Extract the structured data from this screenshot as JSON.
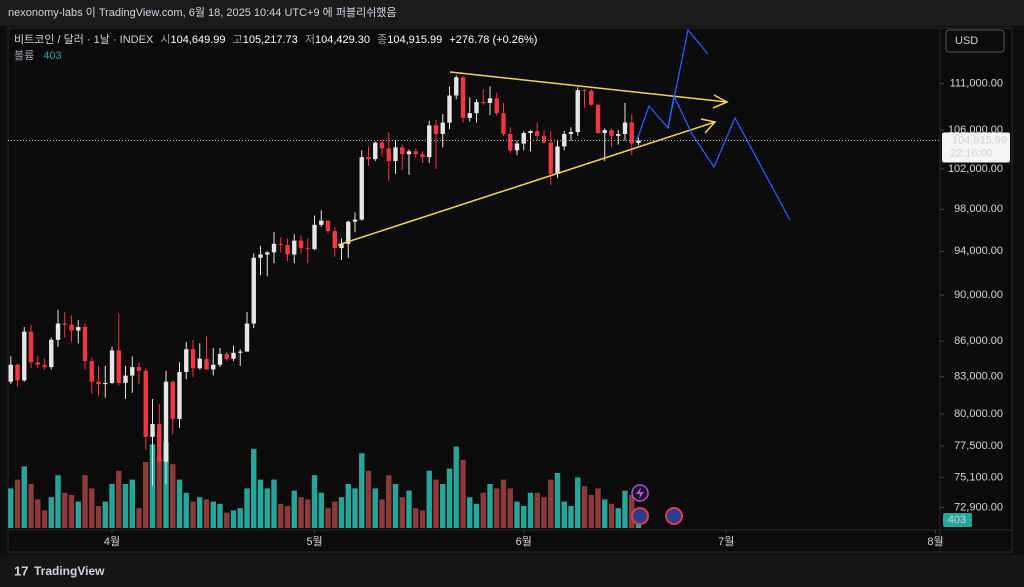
{
  "chart_data": {
    "type": "candlestick",
    "published": "nexonomy-labs 이 TradingView.com, 6월 18, 2025 10:44 UTC+9 에 퍼블리쉬했음",
    "title": "비트코인 / 달러 · 1날 · INDEX",
    "ohlc": {
      "names": [
        "시",
        "고",
        "저",
        "종"
      ],
      "value_labels": [
        "104,649.99",
        "105,217.73",
        "104,429.30",
        "104,915.99"
      ]
    },
    "change_label": "+276.78 (+0.26%)",
    "countdown": "22:16:00",
    "currency": "USD",
    "brand": "TradingView",
    "log_scale": true,
    "grid": false,
    "up_color": "#e6e6e6",
    "down_color": "#f23645",
    "open": [
      82600,
      84000,
      82700,
      86800,
      84200,
      84000,
      83800,
      86100,
      87500,
      87400,
      86900,
      87200,
      84300,
      82600,
      82400,
      82500,
      85200,
      82500,
      83100,
      83800,
      83500,
      78200,
      79200,
      76300,
      82600,
      79600,
      83400,
      85300,
      83700,
      84500,
      83600,
      84000,
      84900,
      84500,
      85000,
      85100,
      87500,
      93400,
      93700,
      93900,
      94700,
      94600,
      93700,
      95000,
      94300,
      94200,
      96500,
      96900,
      95900,
      94300,
      94700,
      96800,
      97000,
      103200,
      103000,
      104700,
      104100,
      102800,
      104200,
      103500,
      103800,
      103500,
      103200,
      106500,
      105600,
      106800,
      109700,
      111700,
      107300,
      107800,
      109000,
      108900,
      109400,
      107800,
      105600,
      103900,
      104600,
      105700,
      105900,
      105400,
      104700,
      101500,
      104300,
      105600,
      105800,
      110300,
      110200,
      108700,
      105700,
      106000,
      105400,
      105600,
      106800,
      104649.99
    ],
    "high": [
      84700,
      84100,
      87200,
      87400,
      84700,
      84500,
      86300,
      88700,
      88500,
      88200,
      87800,
      87500,
      84600,
      83900,
      83900,
      85500,
      88400,
      83900,
      84700,
      84200,
      83700,
      81200,
      80800,
      83500,
      82700,
      84200,
      85900,
      86100,
      85800,
      86400,
      85400,
      85400,
      85100,
      85600,
      85300,
      88500,
      93800,
      94500,
      94000,
      95800,
      95300,
      95200,
      95600,
      95500,
      95200,
      97400,
      97900,
      96900,
      96300,
      95200,
      96900,
      97700,
      103900,
      104300,
      104800,
      105000,
      105800,
      104900,
      104500,
      104000,
      104100,
      103800,
      107000,
      107100,
      107700,
      110700,
      111900,
      111800,
      109500,
      109300,
      110400,
      110700,
      110000,
      108900,
      106300,
      104900,
      105900,
      106000,
      106800,
      106000,
      105900,
      105000,
      105900,
      106300,
      110600,
      110400,
      110400,
      108800,
      106200,
      106200,
      106000,
      108900,
      107700,
      105217.73
    ],
    "low": [
      82400,
      82200,
      82600,
      83700,
      83700,
      83600,
      83600,
      85500,
      86300,
      85900,
      85800,
      83600,
      81600,
      81400,
      81300,
      82400,
      82300,
      81200,
      81700,
      82400,
      77200,
      74500,
      76200,
      74600,
      78400,
      78900,
      82800,
      83000,
      83600,
      83600,
      83100,
      83800,
      84300,
      84300,
      83900,
      85100,
      87100,
      91800,
      91700,
      92900,
      93900,
      93100,
      92900,
      93800,
      92900,
      94100,
      96300,
      95700,
      93500,
      93200,
      93400,
      95800,
      96900,
      102300,
      102800,
      103300,
      100800,
      101500,
      101900,
      101400,
      103100,
      102600,
      102600,
      102000,
      104200,
      106100,
      109300,
      106800,
      106900,
      106800,
      108700,
      107600,
      107500,
      105400,
      103600,
      103400,
      103900,
      103800,
      104900,
      104600,
      100400,
      101100,
      103900,
      104900,
      105400,
      108400,
      108600,
      105600,
      102800,
      104300,
      104500,
      104900,
      103400,
      104429.3
    ],
    "close": [
      84000,
      82700,
      86800,
      84200,
      84000,
      83800,
      86100,
      87500,
      87400,
      86900,
      87200,
      84300,
      82600,
      82400,
      82500,
      85200,
      82500,
      83100,
      83800,
      83500,
      78200,
      79200,
      76300,
      82600,
      79600,
      83400,
      85300,
      83700,
      84500,
      83600,
      84000,
      84900,
      84500,
      85000,
      85100,
      87500,
      93400,
      93700,
      93900,
      94700,
      94600,
      93700,
      95000,
      94300,
      94200,
      96500,
      96900,
      95900,
      94300,
      94700,
      96800,
      97000,
      103200,
      103000,
      104700,
      104100,
      102800,
      104200,
      103500,
      103800,
      103500,
      103200,
      106500,
      105600,
      106800,
      109700,
      111700,
      107300,
      107800,
      109000,
      108900,
      109400,
      107800,
      105600,
      103900,
      104600,
      105700,
      105900,
      105400,
      104700,
      101500,
      104300,
      105600,
      105800,
      110300,
      110200,
      108700,
      105700,
      106000,
      105400,
      105600,
      106800,
      104600,
      104915.99
    ],
    "volume": {
      "name": "볼륨",
      "up_color": "#26a69a",
      "down_color": "#8e3a3a",
      "ylim": [
        0,
        2000
      ],
      "values": [
        900,
        1100,
        1400,
        1000,
        650,
        400,
        700,
        1200,
        800,
        750,
        600,
        1200,
        900,
        500,
        600,
        1000,
        1300,
        1000,
        1100,
        450,
        1500,
        1900,
        1600,
        1950,
        1450,
        1100,
        800,
        600,
        700,
        650,
        600,
        550,
        350,
        400,
        450,
        900,
        1800,
        1100,
        900,
        1100,
        550,
        500,
        850,
        700,
        650,
        1200,
        800,
        450,
        600,
        700,
        1000,
        900,
        1700,
        1300,
        900,
        650,
        1200,
        1000,
        700,
        850,
        450,
        400,
        1300,
        1100,
        1000,
        1350,
        1850,
        1550,
        700,
        550,
        800,
        1000,
        900,
        1100,
        900,
        600,
        500,
        800,
        800,
        700,
        1100,
        1250,
        600,
        500,
        1150,
        950,
        750,
        900,
        650,
        550,
        450,
        850,
        750,
        403
      ]
    },
    "xlim": [
      -0.41,
      137.67
    ],
    "xticks": [
      {
        "value": 15,
        "label": "4월"
      },
      {
        "value": 45,
        "label": "5월"
      },
      {
        "value": 76,
        "label": "6월"
      },
      {
        "value": 106,
        "label": "7월"
      },
      {
        "value": 137,
        "label": "8월"
      }
    ],
    "ylim": [
      71300,
      117300
    ],
    "yticks": [
      {
        "value": 72900,
        "label": "72,900.00"
      },
      {
        "value": 75100,
        "label": "75,100.00"
      },
      {
        "value": 77500,
        "label": "77,500.00"
      },
      {
        "value": 80000,
        "label": "80,000.00"
      },
      {
        "value": 83000,
        "label": "83,000.00"
      },
      {
        "value": 86000,
        "label": "86,000.00"
      },
      {
        "value": 90000,
        "label": "90,000.00"
      },
      {
        "value": 94000,
        "label": "94,000.00"
      },
      {
        "value": 98000,
        "label": "98,000.00"
      },
      {
        "value": 102000,
        "label": "102,000.00"
      },
      {
        "value": 106000,
        "label": "106,000.00"
      },
      {
        "value": 111000,
        "label": "111,000.00"
      }
    ]
  }
}
